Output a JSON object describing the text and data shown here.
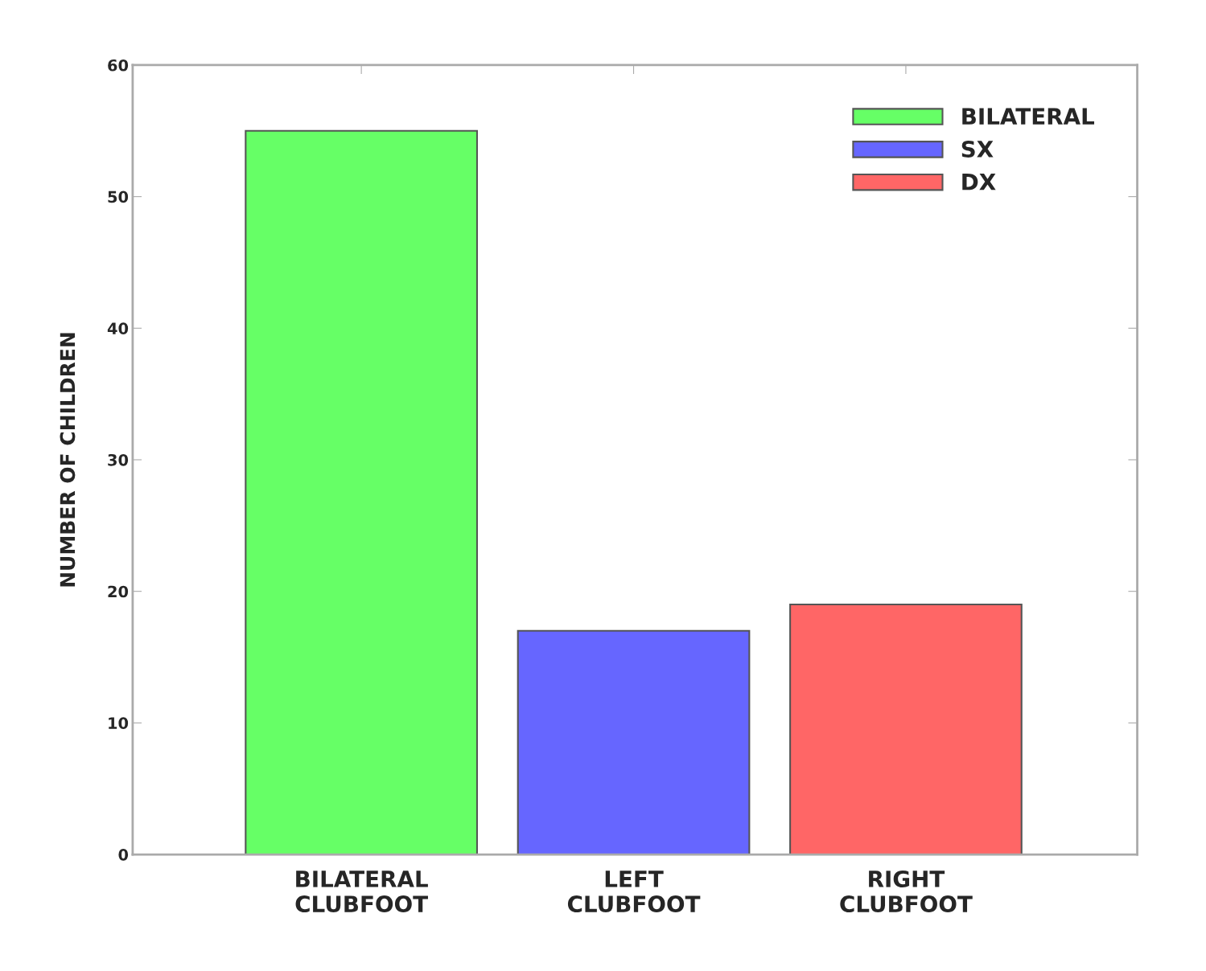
{
  "chart_data": {
    "type": "bar",
    "ylabel": "NUMBER OF CHILDREN",
    "categories": [
      "BILATERAL\nCLUBFOOT",
      "LEFT\nCLUBFOOT",
      "RIGHT\nCLUBFOOT"
    ],
    "series": [
      {
        "name": "BILATERAL",
        "color": "#66ff66",
        "values": [
          55,
          null,
          null
        ]
      },
      {
        "name": "SX",
        "color": "#6666ff",
        "values": [
          null,
          17,
          null
        ]
      },
      {
        "name": "DX",
        "color": "#ff6666",
        "values": [
          null,
          null,
          19
        ]
      }
    ],
    "ylim": [
      0,
      60
    ],
    "yticks": [
      0,
      10,
      20,
      30,
      40,
      50,
      60
    ],
    "grid": false,
    "legend": "top right"
  }
}
